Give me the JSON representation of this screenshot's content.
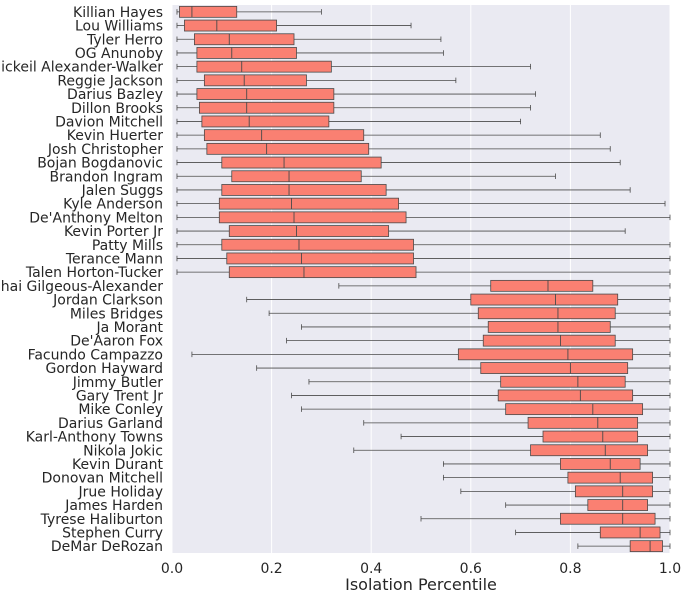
{
  "chart_data": {
    "type": "boxplot",
    "orientation": "horizontal",
    "title": "",
    "xlabel": "Isolation Percentile",
    "ylabel": "",
    "xlim": [
      0.0,
      1.0
    ],
    "xticks": [
      0.0,
      0.2,
      0.4,
      0.6,
      0.8,
      1.0
    ],
    "xtick_labels": [
      "0.0",
      "0.2",
      "0.4",
      "0.6",
      "0.8",
      "1.0"
    ],
    "grid": true,
    "box_color": "#fa8072",
    "edge_color": "#4a4a4a",
    "background_color": "#eaeaf2",
    "categories": [
      "Killian Hayes",
      "Lou Williams",
      "Tyler Herro",
      "OG Anunoby",
      "Nickeil Alexander-Walker",
      "Reggie Jackson",
      "Darius Bazley",
      "Dillon Brooks",
      "Davion Mitchell",
      "Kevin Huerter",
      "Josh Christopher",
      "Bojan Bogdanovic",
      "Brandon Ingram",
      "Jalen Suggs",
      "Kyle Anderson",
      "De'Anthony Melton",
      "Kevin Porter Jr",
      "Patty Mills",
      "Terance Mann",
      "Talen Horton-Tucker",
      "Shai Gilgeous-Alexander",
      "Jordan Clarkson",
      "Miles Bridges",
      "Ja Morant",
      "De'Aaron Fox",
      "Facundo Campazzo",
      "Gordon Hayward",
      "Jimmy Butler",
      "Gary Trent Jr",
      "Mike Conley",
      "Darius Garland",
      "Karl-Anthony Towns",
      "Nikola Jokic",
      "Kevin Durant",
      "Donovan Mitchell",
      "Jrue Holiday",
      "James Harden",
      "Tyrese Haliburton",
      "Stephen Curry",
      "DeMar DeRozan"
    ],
    "boxes": [
      {
        "whislo": 0.01,
        "q1": 0.015,
        "med": 0.04,
        "q3": 0.13,
        "whishi": 0.3
      },
      {
        "whislo": 0.01,
        "q1": 0.025,
        "med": 0.09,
        "q3": 0.21,
        "whishi": 0.48
      },
      {
        "whislo": 0.01,
        "q1": 0.045,
        "med": 0.115,
        "q3": 0.245,
        "whishi": 0.54
      },
      {
        "whislo": 0.01,
        "q1": 0.05,
        "med": 0.12,
        "q3": 0.25,
        "whishi": 0.545
      },
      {
        "whislo": 0.01,
        "q1": 0.05,
        "med": 0.14,
        "q3": 0.32,
        "whishi": 0.72
      },
      {
        "whislo": 0.01,
        "q1": 0.065,
        "med": 0.145,
        "q3": 0.27,
        "whishi": 0.57
      },
      {
        "whislo": 0.01,
        "q1": 0.05,
        "med": 0.15,
        "q3": 0.325,
        "whishi": 0.73
      },
      {
        "whislo": 0.01,
        "q1": 0.055,
        "med": 0.15,
        "q3": 0.325,
        "whishi": 0.72
      },
      {
        "whislo": 0.01,
        "q1": 0.06,
        "med": 0.155,
        "q3": 0.315,
        "whishi": 0.7
      },
      {
        "whislo": 0.01,
        "q1": 0.065,
        "med": 0.18,
        "q3": 0.385,
        "whishi": 0.86
      },
      {
        "whislo": 0.01,
        "q1": 0.07,
        "med": 0.19,
        "q3": 0.395,
        "whishi": 0.88
      },
      {
        "whislo": 0.01,
        "q1": 0.1,
        "med": 0.225,
        "q3": 0.42,
        "whishi": 0.9
      },
      {
        "whislo": 0.01,
        "q1": 0.12,
        "med": 0.235,
        "q3": 0.38,
        "whishi": 0.77
      },
      {
        "whislo": 0.01,
        "q1": 0.1,
        "med": 0.235,
        "q3": 0.43,
        "whishi": 0.92
      },
      {
        "whislo": 0.01,
        "q1": 0.095,
        "med": 0.24,
        "q3": 0.455,
        "whishi": 0.99
      },
      {
        "whislo": 0.01,
        "q1": 0.095,
        "med": 0.245,
        "q3": 0.47,
        "whishi": 1.0
      },
      {
        "whislo": 0.01,
        "q1": 0.115,
        "med": 0.25,
        "q3": 0.435,
        "whishi": 0.91
      },
      {
        "whislo": 0.01,
        "q1": 0.1,
        "med": 0.255,
        "q3": 0.485,
        "whishi": 1.0
      },
      {
        "whislo": 0.01,
        "q1": 0.11,
        "med": 0.26,
        "q3": 0.485,
        "whishi": 1.0
      },
      {
        "whislo": 0.01,
        "q1": 0.115,
        "med": 0.265,
        "q3": 0.49,
        "whishi": 1.0
      },
      {
        "whislo": 0.335,
        "q1": 0.64,
        "med": 0.755,
        "q3": 0.845,
        "whishi": 1.0
      },
      {
        "whislo": 0.15,
        "q1": 0.6,
        "med": 0.77,
        "q3": 0.895,
        "whishi": 1.0
      },
      {
        "whislo": 0.195,
        "q1": 0.615,
        "med": 0.775,
        "q3": 0.89,
        "whishi": 1.0
      },
      {
        "whislo": 0.26,
        "q1": 0.635,
        "med": 0.775,
        "q3": 0.88,
        "whishi": 1.0
      },
      {
        "whislo": 0.23,
        "q1": 0.625,
        "med": 0.78,
        "q3": 0.89,
        "whishi": 1.0
      },
      {
        "whislo": 0.04,
        "q1": 0.575,
        "med": 0.795,
        "q3": 0.925,
        "whishi": 1.0
      },
      {
        "whislo": 0.17,
        "q1": 0.62,
        "med": 0.8,
        "q3": 0.915,
        "whishi": 1.0
      },
      {
        "whislo": 0.275,
        "q1": 0.66,
        "med": 0.815,
        "q3": 0.91,
        "whishi": 1.0
      },
      {
        "whislo": 0.24,
        "q1": 0.655,
        "med": 0.82,
        "q3": 0.925,
        "whishi": 1.0
      },
      {
        "whislo": 0.26,
        "q1": 0.67,
        "med": 0.845,
        "q3": 0.945,
        "whishi": 1.0
      },
      {
        "whislo": 0.385,
        "q1": 0.715,
        "med": 0.855,
        "q3": 0.935,
        "whishi": 1.0
      },
      {
        "whislo": 0.46,
        "q1": 0.745,
        "med": 0.865,
        "q3": 0.935,
        "whishi": 1.0
      },
      {
        "whislo": 0.365,
        "q1": 0.72,
        "med": 0.87,
        "q3": 0.955,
        "whishi": 1.0
      },
      {
        "whislo": 0.545,
        "q1": 0.78,
        "med": 0.88,
        "q3": 0.94,
        "whishi": 1.0
      },
      {
        "whislo": 0.545,
        "q1": 0.795,
        "med": 0.9,
        "q3": 0.965,
        "whishi": 1.0
      },
      {
        "whislo": 0.58,
        "q1": 0.81,
        "med": 0.905,
        "q3": 0.965,
        "whishi": 1.0
      },
      {
        "whislo": 0.67,
        "q1": 0.835,
        "med": 0.905,
        "q3": 0.955,
        "whishi": 1.0
      },
      {
        "whislo": 0.5,
        "q1": 0.78,
        "med": 0.905,
        "q3": 0.97,
        "whishi": 1.0
      },
      {
        "whislo": 0.69,
        "q1": 0.86,
        "med": 0.94,
        "q3": 0.98,
        "whishi": 1.0
      },
      {
        "whislo": 0.815,
        "q1": 0.92,
        "med": 0.96,
        "q3": 0.985,
        "whishi": 1.0
      }
    ]
  }
}
